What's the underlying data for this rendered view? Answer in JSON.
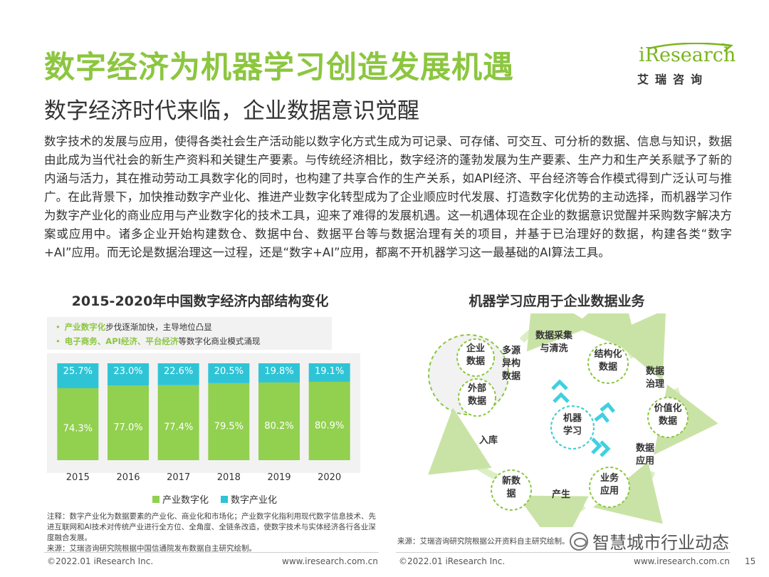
{
  "header": {
    "title": "数字经济为机器学习创造发展机遇",
    "subtitle": "数字经济时代来临，企业数据意识觉醒",
    "logo_word": "iResearch",
    "logo_sub": "艾瑞咨询"
  },
  "body_text": "数字技术的发展与应用，使得各类社会生产活动能以数字化方式生成为可记录、可存储、可交互、可分析的数据、信息与知识，数据由此成为当代社会的新生产资料和关键生产要素。与传统经济相比，数字经济的蓬勃发展为生产要素、生产力和生产关系赋予了新的内涵与活力，其在推动劳动工具数字化的同时，也构建了共享合作的生产关系，如API经济、平台经济等合作模式得到广泛认可与推广。在此背景下，加快推动数字产业化、推进产业数字化转型成为了企业顺应时代发展、打造数字化优势的主动选择，而机器学习作为数字产业化的商业应用与产业数字化的技术工具，迎来了难得的发展机遇。这一机遇体现在企业的数据意识觉醒并采购数字解决方案或应用中。诸多企业开始构建数仓、数据中台、数据平台等与数据治理有关的项目，并基于已治理好的数据，构建各类“数字+AI”应用。而无论是数据治理这一过程，还是“数字+AI”应用，都离不开机器学习这一最基础的AI算法工具。",
  "left_panel": {
    "title": "2015-2020年中国数字经济内部结构变化",
    "note1_highlight": "产业数字化",
    "note1_rest": "步伐逐渐加快，主导地位凸显",
    "note2_highlight": "电子商务、API经济、平台经济",
    "note2_rest": "等数字化商业模式涌现",
    "footnote_1": "注释：数字产业化为数据要素的产业化、商业化和市场化；产业数字化指利用现代数字信息技术、先进互联网和AI技术对传统产业进行全方位、全角度、全链条改造，使数字技术与实体经济各行各业深度融合发展。",
    "footnote_2": "来源：艾瑞咨询研究院根据中国信通院发布数据自主研究绘制。"
  },
  "chart_data": {
    "type": "bar",
    "stacked": true,
    "normalized": true,
    "categories": [
      "2015",
      "2016",
      "2017",
      "2018",
      "2019",
      "2020"
    ],
    "series": [
      {
        "name": "产业数字化",
        "values": [
          74.3,
          77.0,
          77.4,
          79.5,
          80.2,
          80.9
        ],
        "labels": [
          "74.3%",
          "77.0%",
          "77.4%",
          "79.5%",
          "80.2%",
          "80.9%"
        ],
        "color": "#92d050"
      },
      {
        "name": "数字产业化",
        "values": [
          25.7,
          23.0,
          22.6,
          20.5,
          19.8,
          19.1
        ],
        "labels": [
          "25.7%",
          "23.0%",
          "22.6%",
          "20.5%",
          "19.8%",
          "19.1%"
        ],
        "color": "#2ec4d6"
      }
    ],
    "ylim": [
      0,
      100
    ],
    "legend_position": "bottom"
  },
  "right_panel": {
    "title": "机器学习应用于企业数据业务",
    "source": "来源：艾瑞咨询研究院根据公开资料自主研究绘制。",
    "nodes": {
      "enterprise_data": [
        "企业",
        "数据"
      ],
      "external_data": [
        "外部",
        "数据"
      ],
      "multi_source": [
        "多源",
        "异构",
        "数据"
      ],
      "collect": [
        "数据采集",
        "与清洗"
      ],
      "structured": [
        "结构化",
        "数据"
      ],
      "governance": [
        "数据",
        "治理"
      ],
      "valued": [
        "价值化",
        "数据"
      ],
      "application": [
        "数据",
        "应用"
      ],
      "business": [
        "业务",
        "应用"
      ],
      "produce": [
        "产生"
      ],
      "new_data": [
        "新数",
        "据"
      ],
      "storage": [
        "入库"
      ],
      "center": [
        "机器",
        "学习"
      ]
    }
  },
  "watermark": "智慧城市行业动态",
  "footer": {
    "left_copyright": "©2022.01 iResearch Inc.",
    "left_url": "www.iresearch.com.cn",
    "right_copyright": "©2022.01 iResearch Inc.",
    "right_url": "www.iresearch.com.cn",
    "page_number": "15"
  },
  "colors": {
    "accent_green": "#8cc63f",
    "bar_green": "#92d050",
    "bar_cyan": "#2ec4d6"
  }
}
